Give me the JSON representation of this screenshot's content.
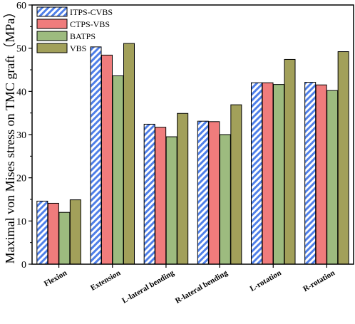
{
  "chart_data": {
    "type": "bar",
    "ylabel": "Maximal von Mises stress on TMC graft（MPa）",
    "xlabel": "",
    "ylim": [
      0,
      60
    ],
    "yticks": [
      "0",
      "10",
      "20",
      "30",
      "40",
      "50",
      "60"
    ],
    "categories": [
      "Flexion",
      "Extension",
      "L-lateral bending",
      "R-lateral bending",
      "L-rotation",
      "R-rotation"
    ],
    "legend_position": "top-left",
    "series": [
      {
        "name": "ITPS-CVBS",
        "color": "#4f7fe8",
        "pattern": "diagonal-hatch",
        "values": [
          14.6,
          50.3,
          32.4,
          33.1,
          42.0,
          42.1
        ]
      },
      {
        "name": "CTPS-VBS",
        "color": "#f07c7c",
        "pattern": "solid",
        "values": [
          14.1,
          48.4,
          31.7,
          33.0,
          42.0,
          41.5
        ]
      },
      {
        "name": "BATPS",
        "color": "#9dbb7f",
        "pattern": "solid",
        "values": [
          12.0,
          43.6,
          29.5,
          30.0,
          41.6,
          40.2
        ]
      },
      {
        "name": "VBS",
        "color": "#a2a05a",
        "pattern": "solid",
        "values": [
          14.9,
          51.1,
          34.9,
          36.9,
          47.4,
          49.2
        ]
      }
    ]
  }
}
